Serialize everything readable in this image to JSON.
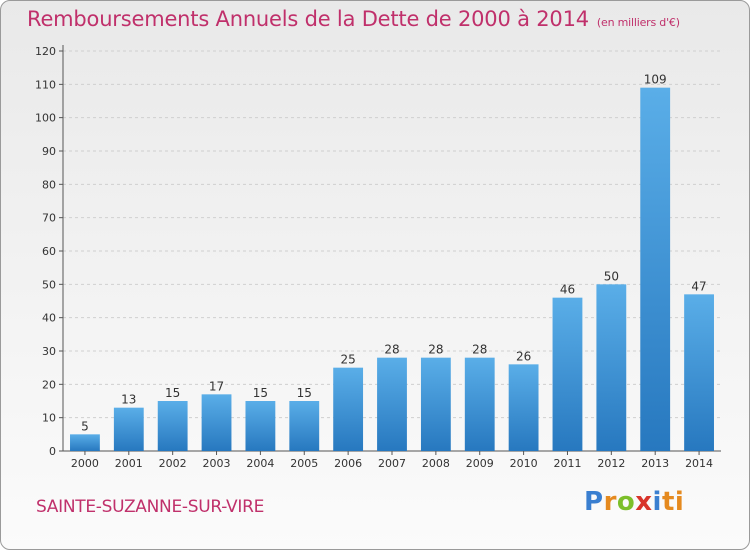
{
  "title": "Remboursements Annuels de la Dette de 2000 à 2014",
  "subtitle": "(en milliers d'€)",
  "commune": "SAINTE-SUZANNE-SUR-VIRE",
  "logo": "Proxiti",
  "chart_data": {
    "type": "bar",
    "title": "Remboursements Annuels de la Dette de 2000 à 2014",
    "subtitle": "(en milliers d'€)",
    "categories": [
      "2000",
      "2001",
      "2002",
      "2003",
      "2004",
      "2005",
      "2006",
      "2007",
      "2008",
      "2009",
      "2010",
      "2011",
      "2012",
      "2013",
      "2014"
    ],
    "values": [
      5,
      13,
      15,
      17,
      15,
      15,
      25,
      28,
      28,
      28,
      26,
      46,
      50,
      109,
      47
    ],
    "ylim": [
      0,
      120
    ],
    "yticks": [
      0,
      10,
      20,
      30,
      40,
      50,
      60,
      70,
      80,
      90,
      100,
      110,
      120
    ],
    "grid": true,
    "bar_color": "#3d92da",
    "title_color": "#c0306b"
  }
}
